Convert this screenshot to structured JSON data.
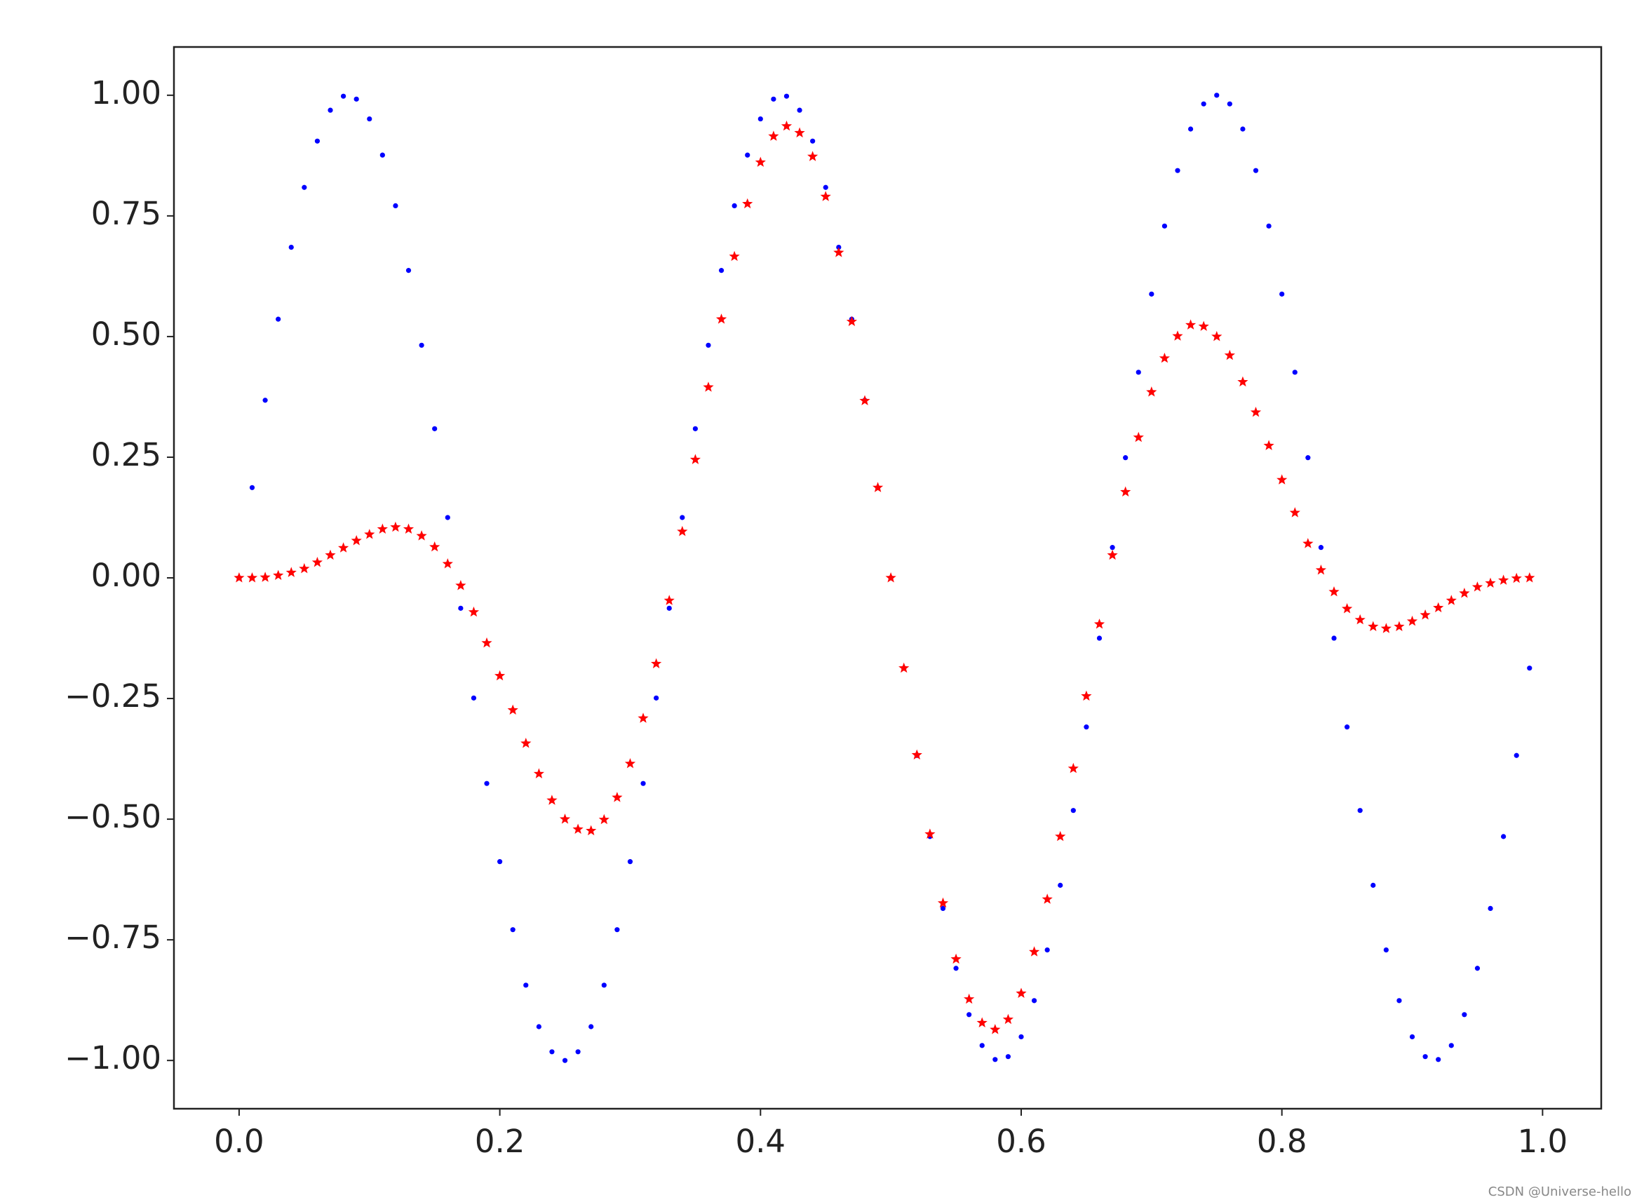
{
  "chart_data": {
    "type": "scatter",
    "watermark": "CSDN @Universe-hello",
    "x": [
      0,
      0.01,
      0.02,
      0.03,
      0.04,
      0.05,
      0.06,
      0.07,
      0.08,
      0.09,
      0.1,
      0.11,
      0.12,
      0.13,
      0.14,
      0.15,
      0.16,
      0.17,
      0.18,
      0.19,
      0.2,
      0.21,
      0.22,
      0.23,
      0.24,
      0.25,
      0.26,
      0.27,
      0.28,
      0.29,
      0.3,
      0.31,
      0.32,
      0.33,
      0.34,
      0.35,
      0.36,
      0.37,
      0.38,
      0.39,
      0.4,
      0.41,
      0.42,
      0.43,
      0.44,
      0.45,
      0.46,
      0.47,
      0.48,
      0.49,
      0.5,
      0.51,
      0.52,
      0.53,
      0.54,
      0.55,
      0.56,
      0.57,
      0.58,
      0.59,
      0.6,
      0.61,
      0.62,
      0.63,
      0.64,
      0.65,
      0.66,
      0.67,
      0.68,
      0.69,
      0.7,
      0.71,
      0.72,
      0.73,
      0.74,
      0.75,
      0.76,
      0.77,
      0.78,
      0.79,
      0.8,
      0.81,
      0.82,
      0.83,
      0.84,
      0.85,
      0.86,
      0.87,
      0.88,
      0.89,
      0.9,
      0.91,
      0.92,
      0.93,
      0.94,
      0.95,
      0.96,
      0.97,
      0.98,
      0.99
    ],
    "series": [
      {
        "color": "#0000ff",
        "marker": "dot",
        "values": [
          0,
          0.187,
          0.368,
          0.536,
          0.685,
          0.809,
          0.905,
          0.969,
          0.998,
          0.992,
          0.951,
          0.876,
          0.771,
          0.637,
          0.482,
          0.309,
          0.125,
          -0.063,
          -0.249,
          -0.426,
          -0.588,
          -0.729,
          -0.844,
          -0.93,
          -0.982,
          -1,
          -0.982,
          -0.93,
          -0.844,
          -0.729,
          -0.588,
          -0.426,
          -0.249,
          -0.063,
          0.125,
          0.309,
          0.482,
          0.637,
          0.771,
          0.876,
          0.951,
          0.992,
          0.998,
          0.969,
          0.905,
          0.809,
          0.685,
          0.536,
          0.368,
          0.187,
          0,
          -0.187,
          -0.368,
          -0.536,
          -0.685,
          -0.809,
          -0.905,
          -0.969,
          -0.998,
          -0.992,
          -0.951,
          -0.876,
          -0.771,
          -0.637,
          -0.482,
          -0.309,
          -0.125,
          0.063,
          0.249,
          0.426,
          0.588,
          0.729,
          0.844,
          0.93,
          0.982,
          1,
          0.982,
          0.93,
          0.844,
          0.729,
          0.588,
          0.426,
          0.249,
          0.063,
          -0.125,
          -0.309,
          -0.482,
          -0.637,
          -0.771,
          -0.876,
          -0.951,
          -0.992,
          -0.998,
          -0.969,
          -0.905,
          -0.809,
          -0.685,
          -0.536,
          -0.368,
          -0.187
        ]
      },
      {
        "color": "#ff0000",
        "marker": "star",
        "values": [
          0,
          0,
          0.001,
          0.005,
          0.011,
          0.019,
          0.032,
          0.047,
          0.062,
          0.077,
          0.09,
          0.101,
          0.105,
          0.101,
          0.087,
          0.064,
          0.029,
          -0.016,
          -0.071,
          -0.135,
          -0.203,
          -0.274,
          -0.343,
          -0.406,
          -0.461,
          -0.5,
          -0.521,
          -0.524,
          -0.501,
          -0.455,
          -0.385,
          -0.291,
          -0.178,
          -0.047,
          0.096,
          0.245,
          0.395,
          0.536,
          0.666,
          0.775,
          0.861,
          0.915,
          0.936,
          0.922,
          0.873,
          0.79,
          0.674,
          0.531,
          0.367,
          0.187,
          0,
          -0.187,
          -0.367,
          -0.531,
          -0.674,
          -0.79,
          -0.873,
          -0.922,
          -0.936,
          -0.915,
          -0.861,
          -0.775,
          -0.666,
          -0.536,
          -0.395,
          -0.245,
          -0.096,
          0.047,
          0.178,
          0.291,
          0.385,
          0.455,
          0.501,
          0.524,
          0.521,
          0.5,
          0.461,
          0.406,
          0.343,
          0.274,
          0.203,
          0.135,
          0.071,
          0.016,
          -0.029,
          -0.064,
          -0.087,
          -0.101,
          -0.105,
          -0.101,
          -0.09,
          -0.077,
          -0.062,
          -0.047,
          -0.032,
          -0.019,
          -0.011,
          -0.005,
          -0.001,
          0
        ]
      }
    ],
    "xlim": [
      -0.05,
      1.045
    ],
    "ylim": [
      -1.1,
      1.1
    ],
    "xticks": [
      {
        "value": 0,
        "label": "0.0"
      },
      {
        "value": 0.2,
        "label": "0.2"
      },
      {
        "value": 0.4,
        "label": "0.4"
      },
      {
        "value": 0.6,
        "label": "0.6"
      },
      {
        "value": 0.8,
        "label": "0.8"
      },
      {
        "value": 1,
        "label": "1.0"
      }
    ],
    "yticks": [
      {
        "value": -1,
        "label": "−1.00"
      },
      {
        "value": -0.75,
        "label": "−0.75"
      },
      {
        "value": -0.5,
        "label": "−0.50"
      },
      {
        "value": -0.25,
        "label": "−0.25"
      },
      {
        "value": 0,
        "label": "0.00"
      },
      {
        "value": 0.25,
        "label": "0.25"
      },
      {
        "value": 0.5,
        "label": "0.50"
      },
      {
        "value": 0.75,
        "label": "0.75"
      },
      {
        "value": 1,
        "label": "1.00"
      }
    ],
    "grid": false
  }
}
